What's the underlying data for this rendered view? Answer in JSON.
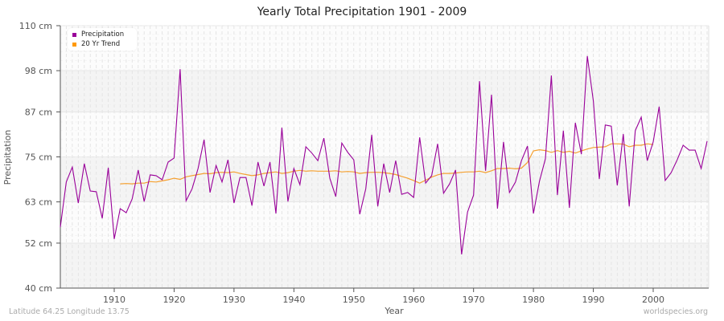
{
  "title": "Yearly Total Precipitation 1901 - 2009",
  "footer": {
    "location": "Latitude 64.25 Longitude 13.75",
    "source": "worldspecies.org"
  },
  "axes": {
    "xlabel": "Year",
    "ylabel": "Precipitation",
    "yticks": [
      "40 cm",
      "52 cm",
      "63 cm",
      "75 cm",
      "87 cm",
      "98 cm",
      "110 cm"
    ],
    "xticks": [
      "1910",
      "1920",
      "1930",
      "1940",
      "1950",
      "1960",
      "1970",
      "1980",
      "1990",
      "2000"
    ]
  },
  "legend": {
    "items": [
      {
        "label": "Precipitation",
        "color": "#990099"
      },
      {
        "label": "20 Yr Trend",
        "color": "#ff9900"
      }
    ]
  },
  "colors": {
    "precipitation": "#990099",
    "trend": "#f5a030",
    "band": "#f4f4f4",
    "grid": "#e4e4e4"
  },
  "chart_data": {
    "type": "line",
    "title": "Yearly Total Precipitation 1901 - 2009",
    "xlabel": "Year",
    "ylabel": "Precipitation",
    "ylim": [
      40,
      110
    ],
    "xlim": [
      1901,
      2009
    ],
    "yunit": "cm",
    "grid": true,
    "legend_position": "top-left",
    "x": [
      1901,
      1902,
      1903,
      1904,
      1905,
      1906,
      1907,
      1908,
      1909,
      1910,
      1911,
      1912,
      1913,
      1914,
      1915,
      1916,
      1917,
      1918,
      1919,
      1920,
      1921,
      1922,
      1923,
      1924,
      1925,
      1926,
      1927,
      1928,
      1929,
      1930,
      1931,
      1932,
      1933,
      1934,
      1935,
      1936,
      1937,
      1938,
      1939,
      1940,
      1941,
      1942,
      1943,
      1944,
      1945,
      1946,
      1947,
      1948,
      1949,
      1950,
      1951,
      1952,
      1953,
      1954,
      1955,
      1956,
      1957,
      1958,
      1959,
      1960,
      1961,
      1962,
      1963,
      1964,
      1965,
      1966,
      1967,
      1968,
      1969,
      1970,
      1971,
      1972,
      1973,
      1974,
      1975,
      1976,
      1977,
      1978,
      1979,
      1980,
      1981,
      1982,
      1983,
      1984,
      1985,
      1986,
      1987,
      1988,
      1989,
      1990,
      1991,
      1992,
      1993,
      1994,
      1995,
      1996,
      1997,
      1998,
      1999,
      2000,
      2001,
      2002,
      2003,
      2004,
      2005,
      2006,
      2007,
      2008,
      2009
    ],
    "series": [
      {
        "name": "Precipitation",
        "values": [
          56.3,
          68.3,
          72.3,
          62.7,
          73.2,
          65.9,
          65.7,
          58.6,
          72.1,
          53.1,
          61.2,
          60.1,
          63.8,
          71.5,
          63.1,
          70.2,
          70.0,
          68.9,
          73.6,
          74.7,
          98.4,
          63.3,
          66.5,
          71.9,
          79.6,
          65.5,
          72.7,
          68.3,
          74.2,
          62.7,
          69.5,
          69.5,
          62.0,
          73.6,
          67.2,
          73.6,
          59.9,
          82.8,
          63.1,
          71.9,
          67.6,
          77.7,
          76.0,
          74.0,
          80.0,
          69.3,
          64.4,
          78.7,
          76.2,
          74.2,
          59.7,
          66.5,
          80.9,
          61.8,
          73.2,
          65.5,
          74.0,
          65.0,
          65.5,
          64.2,
          80.2,
          68.0,
          70.0,
          78.5,
          65.3,
          67.8,
          71.5,
          49.0,
          60.3,
          64.8,
          95.2,
          71.3,
          91.6,
          61.2,
          79.0,
          65.5,
          68.3,
          74.0,
          77.9,
          59.9,
          68.5,
          74.5,
          96.7,
          64.8,
          82.0,
          61.4,
          84.1,
          75.7,
          101.9,
          89.9,
          69.1,
          83.5,
          83.2,
          67.4,
          81.1,
          61.8,
          82.0,
          85.6,
          74.0,
          79.0,
          88.4,
          68.7,
          70.8,
          74.2,
          78.1,
          76.8,
          76.8,
          71.9,
          79.2
        ]
      },
      {
        "name": "20 Yr Trend",
        "start_year": 1911,
        "values": [
          67.8,
          67.9,
          67.8,
          68.0,
          68.0,
          68.4,
          68.3,
          68.6,
          68.9,
          69.3,
          69.0,
          69.7,
          70.0,
          70.3,
          70.6,
          70.5,
          70.8,
          70.9,
          70.8,
          71.0,
          70.6,
          70.3,
          70.0,
          70.2,
          70.6,
          70.8,
          71.0,
          70.6,
          70.8,
          71.2,
          71.4,
          71.2,
          71.3,
          71.2,
          71.2,
          71.2,
          71.3,
          71.0,
          71.1,
          71.0,
          70.6,
          70.8,
          70.9,
          70.9,
          70.8,
          70.6,
          70.3,
          69.8,
          69.3,
          68.7,
          68.0,
          68.8,
          69.6,
          70.2,
          70.6,
          70.6,
          70.7,
          70.9,
          71.0,
          71.0,
          71.2,
          70.8,
          71.3,
          71.9,
          71.9,
          72.0,
          71.8,
          72.0,
          73.5,
          76.6,
          76.9,
          76.7,
          76.2,
          76.7,
          76.2,
          76.5,
          76.0,
          76.6,
          77.1,
          77.5,
          77.6,
          77.7,
          78.5,
          78.5,
          78.4,
          77.7,
          78.1,
          78.1,
          78.5,
          78.3
        ]
      }
    ]
  }
}
